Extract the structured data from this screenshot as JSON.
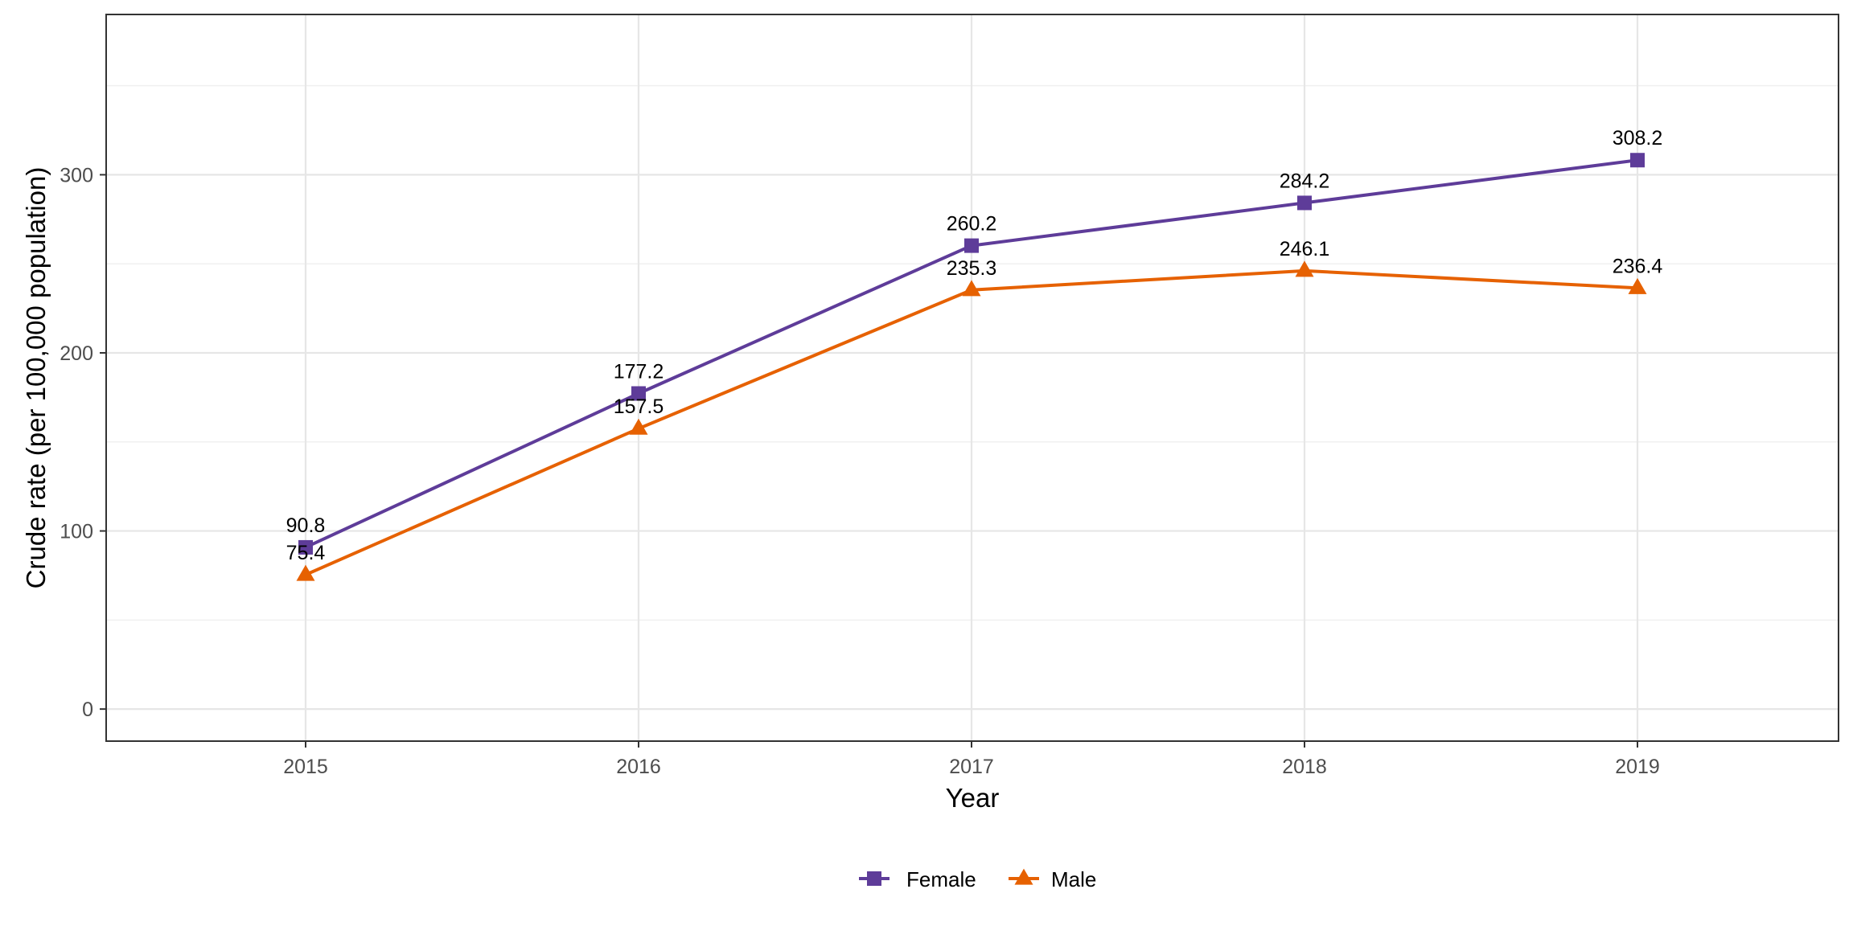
{
  "chart_data": {
    "type": "line",
    "title": "",
    "xlabel": "Year",
    "ylabel": "Crude rate (per 100,000 population)",
    "categories": [
      "2015",
      "2016",
      "2017",
      "2018",
      "2019"
    ],
    "y_ticks": [
      "0",
      "100",
      "200",
      "300"
    ],
    "ylim": [
      -18,
      390
    ],
    "grid": true,
    "legend_position": "bottom",
    "series": [
      {
        "name": "Female",
        "marker": "square",
        "color": "#5e3c99",
        "values": [
          90.8,
          177.2,
          260.2,
          284.2,
          308.2
        ],
        "labels": [
          "90.8",
          "177.2",
          "260.2",
          "284.2",
          "308.2"
        ]
      },
      {
        "name": "Male",
        "marker": "triangle",
        "color": "#e66101",
        "values": [
          75.4,
          157.5,
          235.3,
          246.1,
          236.4
        ],
        "labels": [
          "75.4",
          "157.5",
          "235.3",
          "246.1",
          "236.4"
        ]
      }
    ]
  }
}
